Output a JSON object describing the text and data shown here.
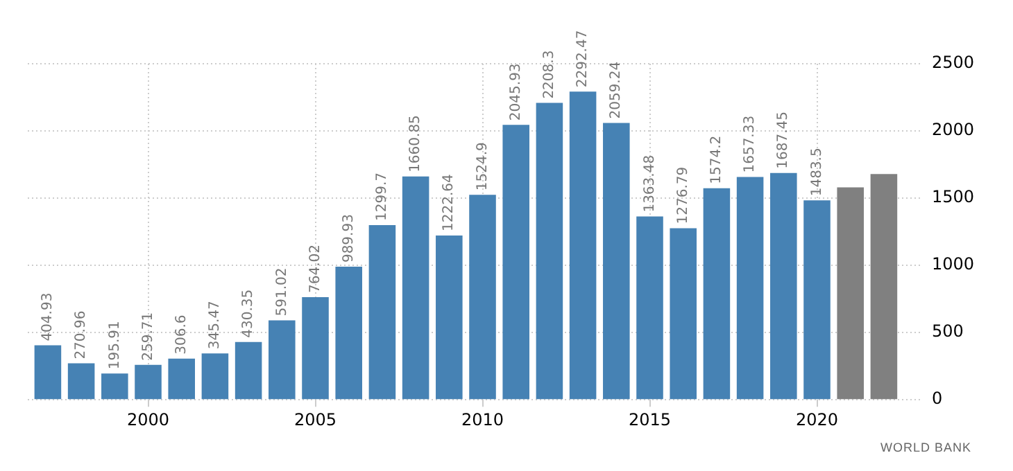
{
  "chart_data": {
    "type": "bar",
    "x": [
      1997,
      1998,
      1999,
      2000,
      2001,
      2002,
      2003,
      2004,
      2005,
      2006,
      2007,
      2008,
      2009,
      2010,
      2011,
      2012,
      2013,
      2014,
      2015,
      2016,
      2017,
      2018,
      2019,
      2020,
      2021,
      2022
    ],
    "values": [
      404.93,
      270.96,
      195.91,
      259.71,
      306.6,
      345.47,
      430.35,
      591.02,
      764.02,
      989.93,
      1299.7,
      1660.85,
      1222.64,
      1524.9,
      2045.93,
      2208.3,
      2292.47,
      2059.24,
      1363.48,
      1276.79,
      1574.2,
      1657.33,
      1687.45,
      1483.5,
      1580,
      1680
    ],
    "value_labels": [
      "404.93",
      "270.96",
      "195.91",
      "259.71",
      "306.6",
      "345.47",
      "430.35",
      "591.02",
      "764.02",
      "989.93",
      "1299.7",
      "1660.85",
      "1222.64",
      "1524.9",
      "2045.93",
      "2208.3",
      "2292.47",
      "2059.24",
      "1363.48",
      "1276.79",
      "1574.2",
      "1657.33",
      "1687.45",
      "1483.5",
      null,
      null
    ],
    "colors": [
      "#4682b4",
      "#4682b4",
      "#4682b4",
      "#4682b4",
      "#4682b4",
      "#4682b4",
      "#4682b4",
      "#4682b4",
      "#4682b4",
      "#4682b4",
      "#4682b4",
      "#4682b4",
      "#4682b4",
      "#4682b4",
      "#4682b4",
      "#4682b4",
      "#4682b4",
      "#4682b4",
      "#4682b4",
      "#4682b4",
      "#4682b4",
      "#4682b4",
      "#4682b4",
      "#4682b4",
      "#808080",
      "#808080"
    ],
    "xlim": [
      1996.4,
      2023.1
    ],
    "xticks": [
      2000,
      2005,
      2010,
      2015,
      2020
    ],
    "ylim": [
      0,
      2500
    ],
    "yticks": [
      0,
      500,
      1000,
      1500,
      2000,
      2500
    ],
    "grid": true,
    "legend": false,
    "annotations": [
      "WORLD BANK"
    ]
  }
}
